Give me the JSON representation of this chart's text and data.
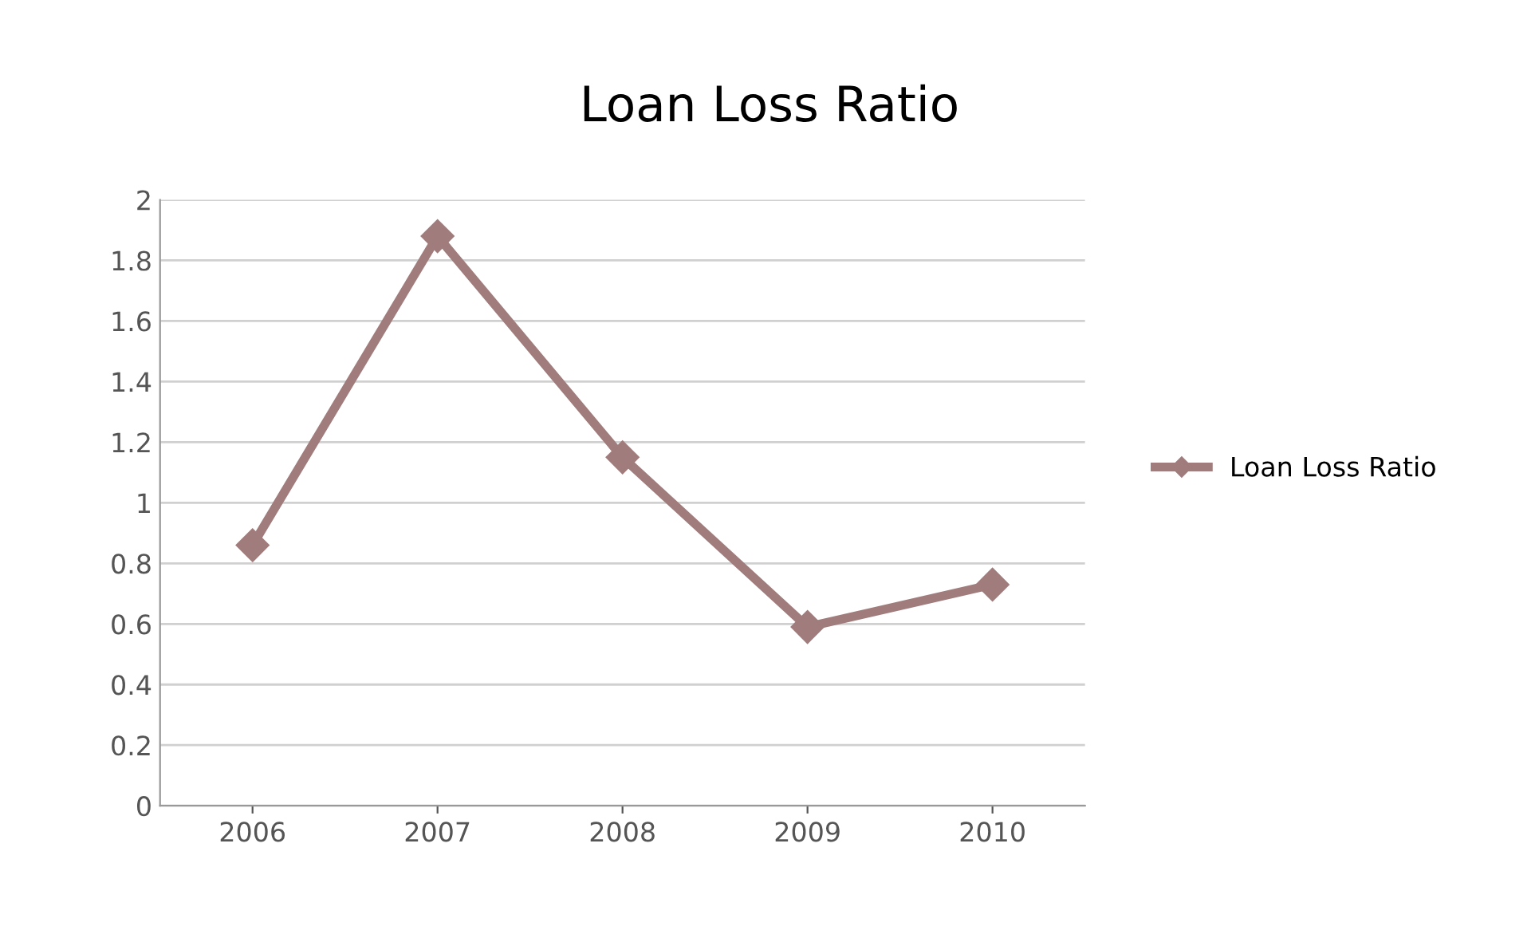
{
  "chart_data": {
    "type": "line",
    "title": "Loan Loss Ratio",
    "categories": [
      "2006",
      "2007",
      "2008",
      "2009",
      "2010"
    ],
    "series": [
      {
        "name": "Loan Loss Ratio",
        "color": "#a07c7c",
        "values": [
          0.86,
          1.88,
          1.15,
          0.59,
          0.73
        ]
      }
    ],
    "ylim": [
      0,
      2
    ],
    "yticks": [
      0,
      0.2,
      0.4,
      0.6,
      0.8,
      1,
      1.2,
      1.4,
      1.6,
      1.8,
      2
    ],
    "grid": "y",
    "legend": "right",
    "marker": "diamond",
    "line_style": "solid"
  }
}
